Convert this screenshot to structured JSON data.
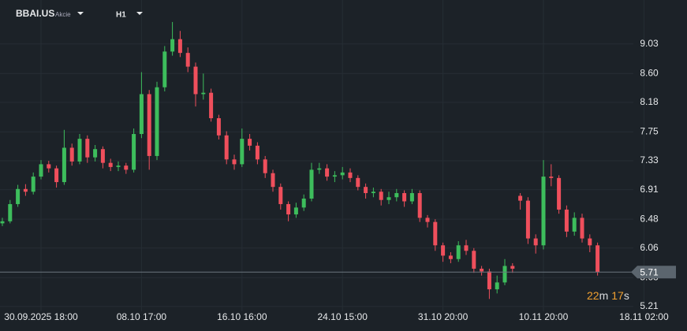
{
  "header": {
    "symbol": "BBAI.US",
    "asset_type": "Akcie",
    "timeframe": "H1"
  },
  "chart_data": {
    "type": "candlestick",
    "categories": [
      null,
      null,
      null,
      null,
      null,
      "30.09.2025 18:00",
      null,
      null,
      null,
      null,
      null,
      null,
      null,
      null,
      null,
      null,
      null,
      null,
      "08.10 17:00",
      null,
      null,
      null,
      null,
      null,
      null,
      null,
      null,
      null,
      null,
      null,
      null,
      "16.10 16:00",
      null,
      null,
      null,
      null,
      null,
      null,
      null,
      null,
      null,
      null,
      null,
      null,
      "24.10 15:00",
      null,
      null,
      null,
      null,
      null,
      null,
      null,
      null,
      null,
      null,
      null,
      null,
      "31.10 20:00",
      null,
      null,
      null,
      null,
      null,
      null,
      null,
      null,
      null,
      null,
      null,
      null,
      "10.11 20:00",
      null,
      null,
      null,
      null,
      null,
      null,
      null,
      null,
      null,
      null,
      null,
      null,
      "18.11 02:00"
    ],
    "open": [
      6.42,
      6.45,
      6.7,
      6.92,
      6.88,
      7.1,
      7.28,
      7.22,
      7.02,
      7.52,
      7.32,
      7.65,
      7.38,
      7.5,
      7.3,
      7.24,
      7.26,
      7.2,
      7.72,
      8.3,
      7.4,
      8.4,
      8.92,
      9.1,
      8.9,
      8.7,
      8.3,
      8.32,
      7.95,
      7.7,
      7.35,
      7.28,
      7.65,
      7.55,
      7.35,
      7.15,
      6.95,
      6.7,
      6.55,
      6.65,
      6.78,
      7.2,
      7.22,
      7.1,
      7.12,
      7.16,
      7.08,
      6.95,
      6.86,
      6.88,
      6.76,
      6.8,
      6.86,
      6.74,
      6.86,
      6.5,
      6.44,
      6.1,
      5.95,
      5.9,
      6.1,
      6.02,
      5.76,
      5.72,
      5.46,
      5.56,
      5.8,
      6.82,
      6.75,
      6.2,
      6.1,
      7.1,
      7.08,
      6.62,
      6.3,
      6.5,
      6.2,
      6.1,
      null,
      null,
      null,
      null,
      null,
      null
    ],
    "high": [
      6.5,
      6.76,
      6.98,
      6.99,
      7.16,
      7.34,
      7.33,
      7.26,
      7.78,
      7.58,
      7.72,
      7.7,
      7.56,
      7.54,
      7.36,
      7.32,
      7.3,
      7.8,
      8.62,
      8.36,
      8.48,
      9.0,
      9.35,
      9.22,
      8.98,
      8.76,
      8.6,
      8.38,
      8.0,
      7.76,
      7.42,
      7.8,
      7.72,
      7.6,
      7.4,
      7.2,
      7.0,
      6.74,
      6.72,
      6.84,
      7.3,
      7.3,
      7.28,
      7.18,
      7.24,
      7.22,
      7.12,
      7.0,
      6.94,
      6.92,
      6.88,
      6.92,
      6.9,
      6.92,
      6.9,
      6.54,
      6.48,
      6.14,
      6.0,
      6.16,
      6.18,
      6.06,
      5.8,
      5.76,
      5.66,
      5.9,
      5.84,
      6.86,
      6.8,
      6.26,
      7.34,
      7.28,
      7.12,
      6.68,
      6.58,
      6.56,
      6.26,
      6.14,
      null,
      null,
      null,
      null,
      null,
      null
    ],
    "low": [
      6.38,
      6.42,
      6.66,
      6.82,
      6.84,
      7.06,
      7.16,
      6.94,
      6.98,
      7.26,
      7.28,
      7.3,
      7.32,
      7.22,
      7.18,
      7.18,
      7.14,
      7.16,
      7.66,
      7.2,
      7.34,
      8.34,
      8.86,
      8.84,
      8.62,
      8.12,
      8.22,
      7.9,
      7.64,
      7.28,
      7.2,
      7.24,
      7.48,
      7.28,
      7.08,
      6.88,
      6.62,
      6.45,
      6.5,
      6.6,
      6.74,
      7.14,
      7.04,
      7.02,
      7.06,
      7.02,
      6.9,
      6.78,
      6.8,
      6.68,
      6.7,
      6.74,
      6.66,
      6.7,
      6.44,
      6.36,
      6.02,
      5.86,
      5.84,
      5.86,
      5.96,
      5.7,
      5.66,
      5.32,
      5.4,
      5.52,
      5.7,
      6.62,
      6.12,
      5.98,
      6.04,
      6.96,
      6.56,
      6.22,
      6.24,
      6.14,
      6.0,
      5.66,
      null,
      null,
      null,
      null,
      null,
      null
    ],
    "close": [
      6.45,
      6.7,
      6.92,
      6.88,
      7.1,
      7.28,
      7.22,
      7.02,
      7.52,
      7.32,
      7.65,
      7.38,
      7.5,
      7.3,
      7.24,
      7.26,
      7.2,
      7.72,
      8.3,
      7.4,
      8.4,
      8.92,
      9.1,
      8.9,
      8.7,
      8.3,
      8.32,
      7.95,
      7.7,
      7.35,
      7.28,
      7.65,
      7.55,
      7.35,
      7.15,
      6.95,
      6.7,
      6.55,
      6.65,
      6.78,
      7.2,
      7.22,
      7.1,
      7.12,
      7.16,
      7.08,
      6.95,
      6.86,
      6.88,
      6.76,
      6.8,
      6.86,
      6.74,
      6.86,
      6.5,
      6.44,
      6.1,
      5.95,
      5.9,
      6.1,
      6.02,
      5.76,
      5.72,
      5.46,
      5.56,
      5.8,
      5.76,
      6.75,
      6.2,
      6.1,
      7.1,
      7.08,
      6.62,
      6.3,
      6.5,
      6.2,
      6.1,
      5.71,
      null,
      null,
      null,
      null,
      null,
      null
    ],
    "up_color": "#3dbd5c",
    "down_color": "#ef4f5c",
    "ylim": [
      5.14,
      9.67
    ],
    "yticks": [
      5.21,
      5.63,
      6.06,
      6.48,
      6.91,
      7.33,
      7.75,
      8.18,
      {
        "value": 8.6,
        "label": "8.60"
      },
      9.03
    ],
    "grid": true,
    "last_price": 5.71,
    "countdown": [
      "22",
      "m",
      "17",
      "s"
    ]
  }
}
